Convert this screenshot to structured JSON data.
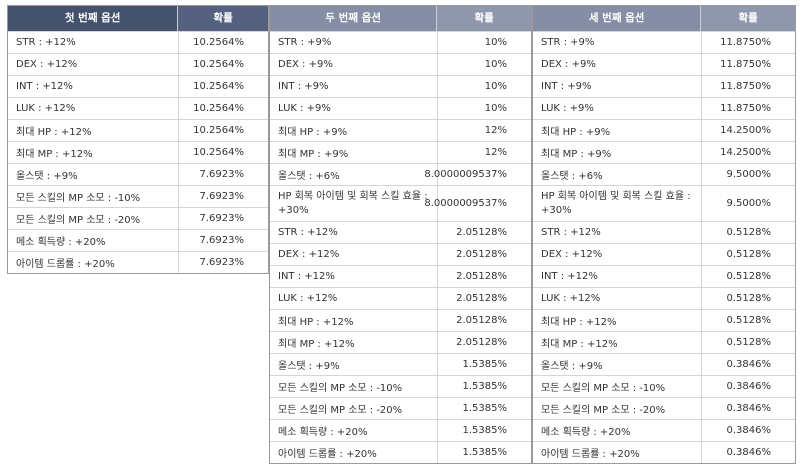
{
  "tables": [
    {
      "header": {
        "option": "첫 번째 옵션",
        "prob": "확률"
      },
      "rows": [
        {
          "option": "STR : +12%",
          "prob": "10.2564%"
        },
        {
          "option": "DEX : +12%",
          "prob": "10.2564%"
        },
        {
          "option": "INT : +12%",
          "prob": "10.2564%"
        },
        {
          "option": "LUK : +12%",
          "prob": "10.2564%"
        },
        {
          "option": "최대 HP : +12%",
          "prob": "10.2564%"
        },
        {
          "option": "최대 MP : +12%",
          "prob": "10.2564%"
        },
        {
          "option": "올스탯 : +9%",
          "prob": "7.6923%"
        },
        {
          "option": "모든 스킬의 MP 소모 : -10%",
          "prob": "7.6923%"
        },
        {
          "option": "모든 스킬의 MP 소모 : -20%",
          "prob": "7.6923%"
        },
        {
          "option": "메소 획득량 : +20%",
          "prob": "7.6923%"
        },
        {
          "option": "아이템 드롭률 : +20%",
          "prob": "7.6923%"
        }
      ]
    },
    {
      "header": {
        "option": "두 번째 옵션",
        "prob": "확률"
      },
      "rows": [
        {
          "option": "STR : +9%",
          "prob": "10%"
        },
        {
          "option": "DEX : +9%",
          "prob": "10%"
        },
        {
          "option": "INT : +9%",
          "prob": "10%"
        },
        {
          "option": "LUK : +9%",
          "prob": "10%"
        },
        {
          "option": "최대 HP : +9%",
          "prob": "12%"
        },
        {
          "option": "최대 MP : +9%",
          "prob": "12%"
        },
        {
          "option": "올스탯 : +6%",
          "prob": "8.0000009537%"
        },
        {
          "option": "HP 회복 아이템 및 회복 스킬 효율 : +30%",
          "prob": "8.0000009537%"
        },
        {
          "option": "STR : +12%",
          "prob": "2.05128%"
        },
        {
          "option": "DEX : +12%",
          "prob": "2.05128%"
        },
        {
          "option": "INT : +12%",
          "prob": "2.05128%"
        },
        {
          "option": "LUK : +12%",
          "prob": "2.05128%"
        },
        {
          "option": "최대 HP : +12%",
          "prob": "2.05128%"
        },
        {
          "option": "최대 MP : +12%",
          "prob": "2.05128%"
        },
        {
          "option": "올스탯 : +9%",
          "prob": "1.5385%"
        },
        {
          "option": "모든 스킬의 MP 소모 : -10%",
          "prob": "1.5385%"
        },
        {
          "option": "모든 스킬의 MP 소모 : -20%",
          "prob": "1.5385%"
        },
        {
          "option": "메소 획득량 : +20%",
          "prob": "1.5385%"
        },
        {
          "option": "아이템 드롭률 : +20%",
          "prob": "1.5385%"
        }
      ]
    },
    {
      "header": {
        "option": "세 번째 옵션",
        "prob": "확률"
      },
      "rows": [
        {
          "option": "STR : +9%",
          "prob": "11.8750%"
        },
        {
          "option": "DEX : +9%",
          "prob": "11.8750%"
        },
        {
          "option": "INT : +9%",
          "prob": "11.8750%"
        },
        {
          "option": "LUK : +9%",
          "prob": "11.8750%"
        },
        {
          "option": "최대 HP : +9%",
          "prob": "14.2500%"
        },
        {
          "option": "최대 MP : +9%",
          "prob": "14.2500%"
        },
        {
          "option": "올스탯 : +6%",
          "prob": "9.5000%"
        },
        {
          "option": "HP 회복 아이템 및 회복 스킬 효율 : +30%",
          "prob": "9.5000%"
        },
        {
          "option": "STR : +12%",
          "prob": "0.5128%"
        },
        {
          "option": "DEX : +12%",
          "prob": "0.5128%"
        },
        {
          "option": "INT : +12%",
          "prob": "0.5128%"
        },
        {
          "option": "LUK : +12%",
          "prob": "0.5128%"
        },
        {
          "option": "최대 HP : +12%",
          "prob": "0.5128%"
        },
        {
          "option": "최대 MP : +12%",
          "prob": "0.5128%"
        },
        {
          "option": "올스탯 : +9%",
          "prob": "0.3846%"
        },
        {
          "option": "모든 스킬의 MP 소모 : -10%",
          "prob": "0.3846%"
        },
        {
          "option": "모든 스킬의 MP 소모 : -20%",
          "prob": "0.3846%"
        },
        {
          "option": "메소 획득량 : +20%",
          "prob": "0.3846%"
        },
        {
          "option": "아이템 드롭률 : +20%",
          "prob": "0.3846%"
        }
      ]
    }
  ]
}
